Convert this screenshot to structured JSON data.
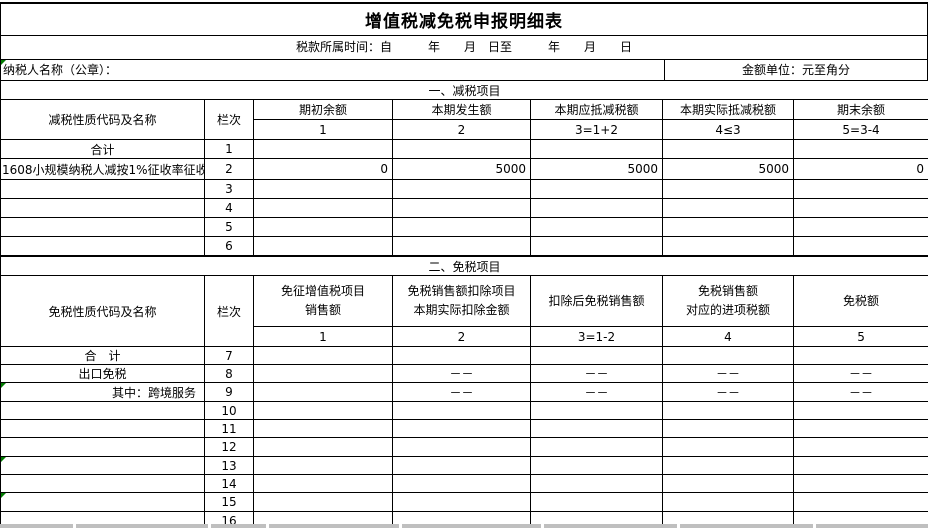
{
  "title": "增值税减免税申报明细表",
  "meta": {
    "period_label": "税款所属时间：自　　　年　　月　日至　　　年　　月　　日",
    "taxpayer_label": "纳税人名称（公章）：",
    "unit_label": "金额单位：元至角分"
  },
  "section1": {
    "title": "一、减税项目",
    "name_header": "减税性质代码及名称",
    "col_header": "栏次",
    "columns": [
      "期初余额",
      "本期发生额",
      "本期应抵减税额",
      "本期实际抵减税额",
      "期末余额"
    ],
    "col_numbers": [
      "1",
      "2",
      "3=1+2",
      "4≤3",
      "5=3-4"
    ],
    "rows": [
      {
        "name": "合计",
        "no": "1",
        "name_align": "center",
        "values": [
          "",
          "",
          "",
          "",
          ""
        ],
        "values_align": "right"
      },
      {
        "name": "1608小规模纳税人减按1%征收率征收",
        "no": "2",
        "name_align": "left",
        "values": [
          "0",
          "5000",
          "5000",
          "5000",
          "0"
        ],
        "values_align": "right"
      },
      {
        "name": "",
        "no": "3",
        "name_align": "center",
        "values": [
          "",
          "",
          "",
          "",
          ""
        ],
        "values_align": "right"
      },
      {
        "name": "",
        "no": "4",
        "name_align": "center",
        "values": [
          "",
          "",
          "",
          "",
          ""
        ],
        "values_align": "right"
      },
      {
        "name": "",
        "no": "5",
        "name_align": "center",
        "values": [
          "",
          "",
          "",
          "",
          ""
        ],
        "values_align": "right"
      },
      {
        "name": "",
        "no": "6",
        "name_align": "center",
        "values": [
          "",
          "",
          "",
          "",
          ""
        ],
        "values_align": "right"
      }
    ]
  },
  "section2": {
    "title": "二、免税项目",
    "name_header": "免税性质代码及名称",
    "col_header": "栏次",
    "columns": [
      [
        "免征增值税项目",
        "销售额"
      ],
      [
        "免税销售额扣除项目",
        "本期实际扣除金额"
      ],
      [
        "扣除后免税销售额",
        ""
      ],
      [
        "免税销售额",
        "对应的进项税额"
      ],
      [
        "免税额",
        ""
      ]
    ],
    "col_numbers": [
      "1",
      "2",
      "3=1-2",
      "4",
      "5"
    ],
    "rows": [
      {
        "name": "合　计",
        "no": "7",
        "name_align": "center",
        "values": [
          "",
          "",
          "",
          "",
          ""
        ],
        "values_align": "center",
        "marker": false
      },
      {
        "name": "出口免税",
        "no": "8",
        "name_align": "center",
        "values": [
          "",
          "－－",
          "－－",
          "－－",
          "－－"
        ],
        "values_align": "center",
        "marker": false
      },
      {
        "name": "其中：跨境服务",
        "no": "9",
        "name_align": "right",
        "values": [
          "",
          "－－",
          "－－",
          "－－",
          "－－"
        ],
        "values_align": "center",
        "marker": true
      },
      {
        "name": "",
        "no": "10",
        "name_align": "center",
        "values": [
          "",
          "",
          "",
          "",
          ""
        ],
        "values_align": "center",
        "marker": false
      },
      {
        "name": "",
        "no": "11",
        "name_align": "center",
        "values": [
          "",
          "",
          "",
          "",
          ""
        ],
        "values_align": "center",
        "marker": false
      },
      {
        "name": "",
        "no": "12",
        "name_align": "center",
        "values": [
          "",
          "",
          "",
          "",
          ""
        ],
        "values_align": "center",
        "marker": false
      },
      {
        "name": "",
        "no": "13",
        "name_align": "center",
        "values": [
          "",
          "",
          "",
          "",
          ""
        ],
        "values_align": "center",
        "marker": true
      },
      {
        "name": "",
        "no": "14",
        "name_align": "center",
        "values": [
          "",
          "",
          "",
          "",
          ""
        ],
        "values_align": "center",
        "marker": false
      },
      {
        "name": "",
        "no": "15",
        "name_align": "center",
        "values": [
          "",
          "",
          "",
          "",
          ""
        ],
        "values_align": "center",
        "marker": true
      },
      {
        "name": "",
        "no": "16",
        "name_align": "center",
        "values": [
          "",
          "",
          "",
          "",
          ""
        ],
        "values_align": "center",
        "marker": false
      }
    ]
  },
  "colors": {
    "border": "#000000",
    "error_indicator_green": "#007a00",
    "clipped_row_grey": "#bfbfbf"
  }
}
